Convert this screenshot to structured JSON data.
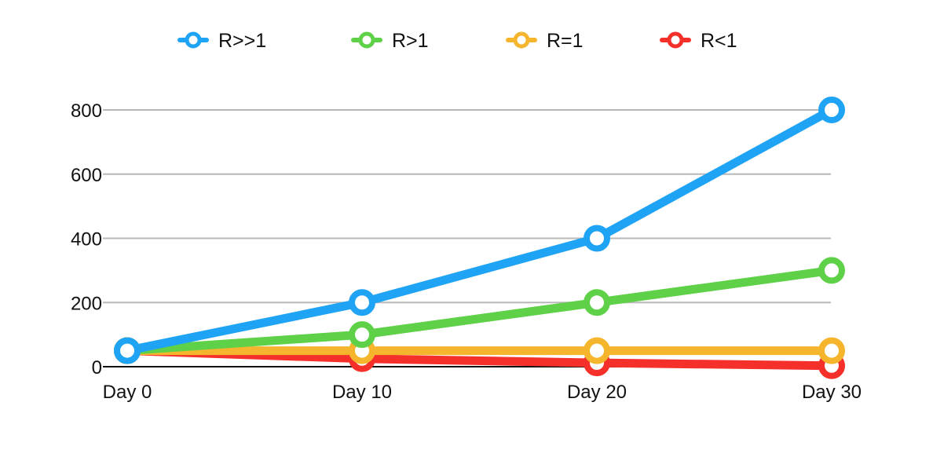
{
  "chart_data": {
    "type": "line",
    "title": "",
    "xlabel": "",
    "ylabel": "",
    "categories": [
      "Day 0",
      "Day 10",
      "Day 20",
      "Day 30"
    ],
    "ylim": [
      0,
      800
    ],
    "yticks": [
      0,
      200,
      400,
      600,
      800
    ],
    "grid": true,
    "legend_position": "top",
    "series": [
      {
        "name": "R>>1",
        "color": "#1FA3F5",
        "values": [
          50,
          200,
          400,
          800
        ]
      },
      {
        "name": "R>1",
        "color": "#5FD148",
        "values": [
          50,
          100,
          200,
          300
        ]
      },
      {
        "name": "R=1",
        "color": "#F5B52C",
        "values": [
          50,
          50,
          50,
          50
        ]
      },
      {
        "name": "R<1",
        "color": "#F5302A",
        "values": [
          50,
          25,
          12,
          3
        ]
      }
    ]
  }
}
